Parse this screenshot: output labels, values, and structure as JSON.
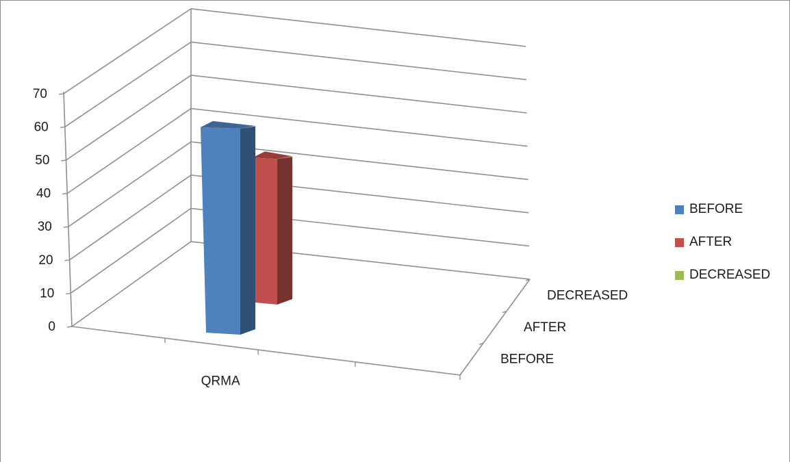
{
  "chart_data": {
    "type": "bar",
    "variant": "3d-column",
    "categories": [
      "QRMA"
    ],
    "depth_categories": [
      "BEFORE",
      "AFTER",
      "DECREASED"
    ],
    "series": [
      {
        "name": "BEFORE",
        "values": [
          63
        ],
        "color": "#4f81bd"
      },
      {
        "name": "AFTER",
        "values": [
          45
        ],
        "color": "#c0504d"
      },
      {
        "name": "DECREASED",
        "values": [
          0
        ],
        "color": "#9bbb59"
      }
    ],
    "title": "",
    "xlabel": "",
    "ylabel": "",
    "ylim": [
      0,
      70
    ],
    "yticks": [
      "0",
      "10",
      "20",
      "30",
      "40",
      "50",
      "60",
      "70"
    ],
    "grid": true,
    "legend_position": "right"
  }
}
